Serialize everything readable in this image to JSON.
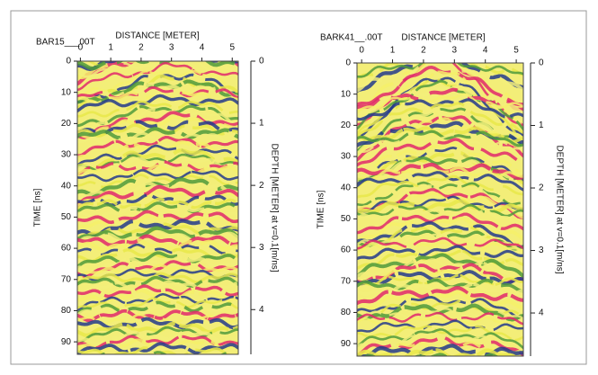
{
  "chart_data": [
    {
      "type": "radargram",
      "title": "BAR15___00T",
      "xlabel": "DISTANCE [METER]",
      "ylabel": "TIME [ns]",
      "y2label": "DEPTH [METER] at v=0.1[m/ns]",
      "xlim": [
        -0.1,
        5.2
      ],
      "xticks": [
        0,
        1,
        2,
        3,
        4,
        5
      ],
      "ylim": [
        0,
        94
      ],
      "yticks": [
        0,
        10,
        20,
        30,
        40,
        50,
        60,
        70,
        80,
        90
      ],
      "y_inverted": true,
      "y2lim": [
        0,
        4.72
      ],
      "y2ticks": [
        0,
        1,
        2,
        3,
        4
      ]
    },
    {
      "type": "radargram",
      "title": "BARK41__.00T",
      "xlabel": "DISTANCE [METER]",
      "ylabel": "TIME [ns]",
      "y2label": "DEPTH [METER] at v=0.1[m/ns]",
      "xlim": [
        -0.15,
        5.23
      ],
      "xticks": [
        0,
        1,
        2,
        3,
        4,
        5
      ],
      "ylim": [
        0,
        94
      ],
      "yticks": [
        0,
        10,
        20,
        30,
        40,
        50,
        60,
        70,
        80,
        90
      ],
      "y_inverted": true,
      "y2lim": [
        0,
        4.69
      ],
      "y2ticks": [
        0,
        1,
        2,
        3,
        4
      ]
    }
  ]
}
